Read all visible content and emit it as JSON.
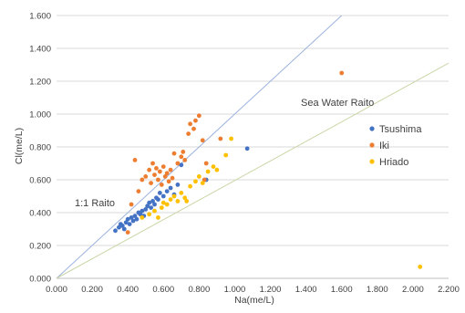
{
  "chart_data": {
    "type": "scatter",
    "title": "",
    "xlabel": "Na(me/L)",
    "ylabel": "Cl(me/L)",
    "xlim": [
      0,
      2.2
    ],
    "ylim": [
      0,
      1.6
    ],
    "x_ticks": [
      "0.000",
      "0.200",
      "0.400",
      "0.600",
      "0.800",
      "1.000",
      "1.200",
      "1.400",
      "1.600",
      "1.800",
      "2.000",
      "2.200"
    ],
    "y_ticks": [
      "0.000",
      "0.200",
      "0.400",
      "0.600",
      "0.800",
      "1.000",
      "1.200",
      "1.400",
      "1.600"
    ],
    "grid": "horizontal",
    "legend_position": "right",
    "series": [
      {
        "name": "Tsushima",
        "color": "#4472C4",
        "points": [
          [
            0.33,
            0.29
          ],
          [
            0.35,
            0.31
          ],
          [
            0.36,
            0.33
          ],
          [
            0.37,
            0.32
          ],
          [
            0.38,
            0.3
          ],
          [
            0.39,
            0.34
          ],
          [
            0.4,
            0.36
          ],
          [
            0.41,
            0.33
          ],
          [
            0.42,
            0.37
          ],
          [
            0.43,
            0.35
          ],
          [
            0.44,
            0.38
          ],
          [
            0.45,
            0.36
          ],
          [
            0.46,
            0.4
          ],
          [
            0.47,
            0.39
          ],
          [
            0.48,
            0.41
          ],
          [
            0.49,
            0.38
          ],
          [
            0.5,
            0.42
          ],
          [
            0.51,
            0.44
          ],
          [
            0.52,
            0.46
          ],
          [
            0.53,
            0.43
          ],
          [
            0.54,
            0.47
          ],
          [
            0.55,
            0.45
          ],
          [
            0.56,
            0.49
          ],
          [
            0.57,
            0.48
          ],
          [
            0.58,
            0.52
          ],
          [
            0.6,
            0.5
          ],
          [
            0.62,
            0.53
          ],
          [
            0.64,
            0.55
          ],
          [
            0.66,
            0.51
          ],
          [
            0.68,
            0.57
          ],
          [
            0.7,
            0.69
          ],
          [
            0.84,
            0.6
          ],
          [
            1.07,
            0.79
          ]
        ]
      },
      {
        "name": "Iki",
        "color": "#ED7D31",
        "points": [
          [
            0.4,
            0.28
          ],
          [
            0.42,
            0.45
          ],
          [
            0.44,
            0.72
          ],
          [
            0.46,
            0.53
          ],
          [
            0.48,
            0.6
          ],
          [
            0.5,
            0.62
          ],
          [
            0.52,
            0.66
          ],
          [
            0.53,
            0.58
          ],
          [
            0.54,
            0.7
          ],
          [
            0.55,
            0.63
          ],
          [
            0.56,
            0.67
          ],
          [
            0.57,
            0.6
          ],
          [
            0.58,
            0.65
          ],
          [
            0.59,
            0.57
          ],
          [
            0.6,
            0.68
          ],
          [
            0.61,
            0.62
          ],
          [
            0.62,
            0.64
          ],
          [
            0.63,
            0.59
          ],
          [
            0.64,
            0.66
          ],
          [
            0.65,
            0.61
          ],
          [
            0.66,
            0.76
          ],
          [
            0.68,
            0.7
          ],
          [
            0.7,
            0.74
          ],
          [
            0.71,
            0.77
          ],
          [
            0.72,
            0.72
          ],
          [
            0.74,
            0.88
          ],
          [
            0.75,
            0.94
          ],
          [
            0.77,
            0.91
          ],
          [
            0.78,
            0.96
          ],
          [
            0.8,
            0.99
          ],
          [
            0.82,
            0.84
          ],
          [
            0.84,
            0.7
          ],
          [
            0.83,
            0.6
          ],
          [
            0.92,
            0.85
          ],
          [
            1.6,
            1.25
          ]
        ]
      },
      {
        "name": "Hriado",
        "color": "#FFC000",
        "points": [
          [
            0.48,
            0.37
          ],
          [
            0.52,
            0.39
          ],
          [
            0.55,
            0.41
          ],
          [
            0.57,
            0.37
          ],
          [
            0.59,
            0.43
          ],
          [
            0.6,
            0.46
          ],
          [
            0.62,
            0.45
          ],
          [
            0.64,
            0.48
          ],
          [
            0.66,
            0.5
          ],
          [
            0.68,
            0.47
          ],
          [
            0.7,
            0.52
          ],
          [
            0.72,
            0.49
          ],
          [
            0.73,
            0.47
          ],
          [
            0.75,
            0.56
          ],
          [
            0.78,
            0.59
          ],
          [
            0.8,
            0.62
          ],
          [
            0.82,
            0.58
          ],
          [
            0.85,
            0.65
          ],
          [
            0.88,
            0.68
          ],
          [
            0.9,
            0.66
          ],
          [
            0.95,
            0.75
          ],
          [
            0.98,
            0.85
          ],
          [
            2.04,
            0.07
          ]
        ]
      }
    ],
    "reference_lines": [
      {
        "label": "1:1 Raito",
        "color": "#9DB3DF",
        "from": [
          0,
          0
        ],
        "to": [
          1.6,
          1.6
        ]
      },
      {
        "label": "Sea Water Raito",
        "color": "#C9D6A6",
        "from": [
          0,
          0
        ],
        "to": [
          2.2,
          1.31
        ]
      }
    ]
  }
}
